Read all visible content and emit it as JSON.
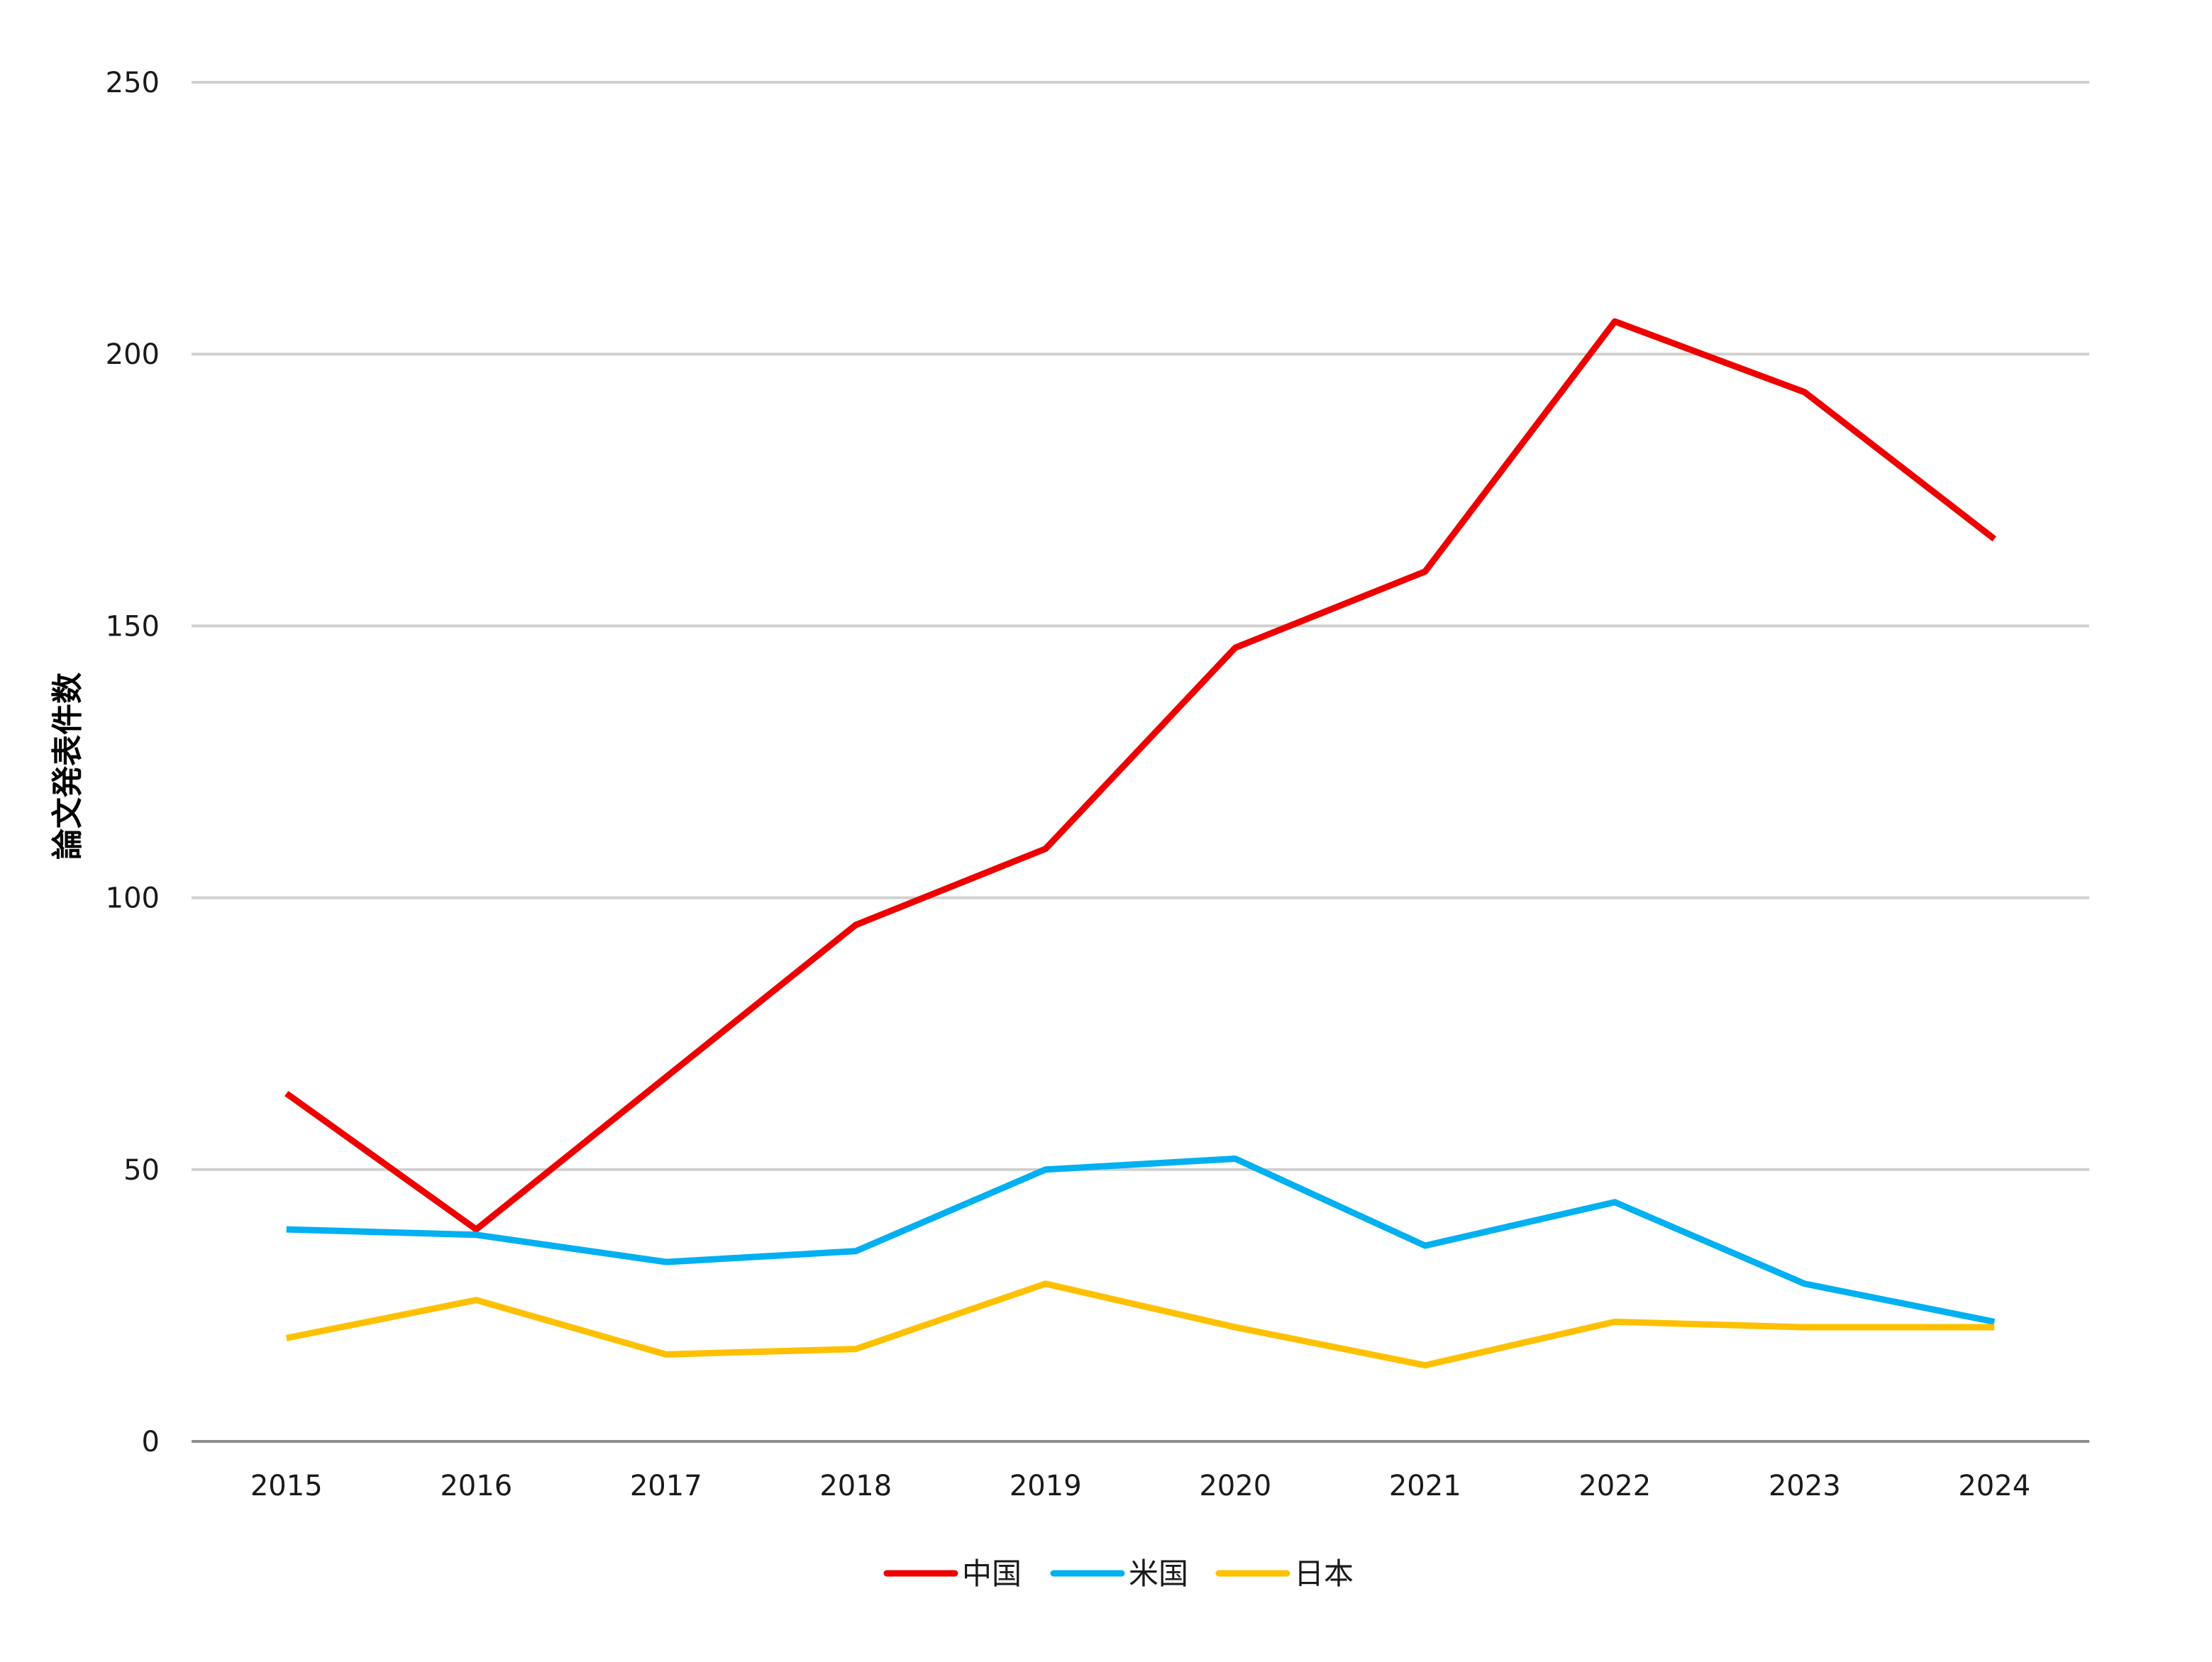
{
  "colors": {
    "gridline": "#d0d0d0",
    "axis": "#8c8c8c",
    "china": "#ee0000",
    "usa": "#00b0f0",
    "japan": "#ffc000"
  },
  "chart_data": {
    "type": "line",
    "title": "",
    "xlabel": "",
    "ylabel": "論文発表件数",
    "categories": [
      "2015",
      "2016",
      "2017",
      "2018",
      "2019",
      "2020",
      "2021",
      "2022",
      "2023",
      "2024"
    ],
    "ylim": [
      0,
      250
    ],
    "yticks": [
      "0",
      "50",
      "100",
      "150",
      "200",
      "250"
    ],
    "grid": true,
    "legend_position": "bottom",
    "series": [
      {
        "name": "中国",
        "color": "#ee0000",
        "values": [
          64,
          39,
          67,
          95,
          109,
          146,
          160,
          206,
          193,
          166
        ]
      },
      {
        "name": "米国",
        "color": "#00b0f0",
        "values": [
          39,
          38,
          33,
          35,
          50,
          52,
          36,
          44,
          29,
          22
        ]
      },
      {
        "name": "日本",
        "color": "#ffc000",
        "values": [
          19,
          26,
          16,
          17,
          29,
          21,
          14,
          22,
          21,
          21
        ]
      }
    ]
  }
}
